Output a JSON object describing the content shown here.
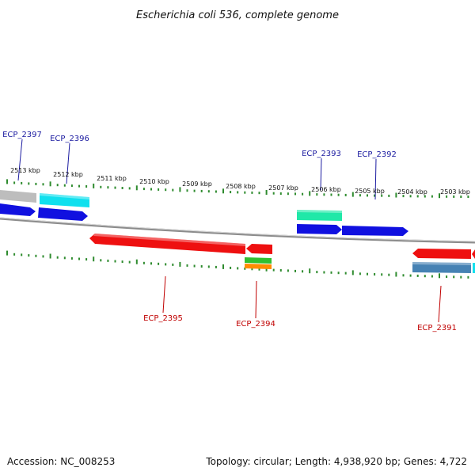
{
  "title": "Escherichia coli 536, complete genome",
  "accession_text": "Accession: NC_008253",
  "summary_text": "Topology: circular; Length: 4,938,920 bp; Genes: 4,722",
  "colors": {
    "tick": "#2e8b2e",
    "backbone": "#8c8c8c",
    "label_forward": "#1a1aa0",
    "label_reverse": "#c00000",
    "blue": "#1010e0",
    "cyan": "#10e0ee",
    "teal": "#20e8a8",
    "red": "#ee1010",
    "green": "#30c030",
    "orange": "#ff8c00",
    "steelblue": "#4682b4",
    "grey": "#bdbdbd"
  },
  "ticks": [
    "2513 kbp",
    "2512 kbp",
    "2511 kbp",
    "2510 kbp",
    "2509 kbp",
    "2508 kbp",
    "2507 kbp",
    "2506 kbp",
    "2505 kbp",
    "2504 kbp",
    "2503 kbp"
  ],
  "genes": [
    {
      "label": "ECP_2397",
      "strand": "forward"
    },
    {
      "label": "ECP_2396",
      "strand": "forward"
    },
    {
      "label": "ECP_2393",
      "strand": "forward"
    },
    {
      "label": "ECP_2392",
      "strand": "forward"
    },
    {
      "label": "ECP_2395",
      "strand": "reverse"
    },
    {
      "label": "ECP_2394",
      "strand": "reverse"
    },
    {
      "label": "ECP_2391",
      "strand": "reverse"
    }
  ]
}
